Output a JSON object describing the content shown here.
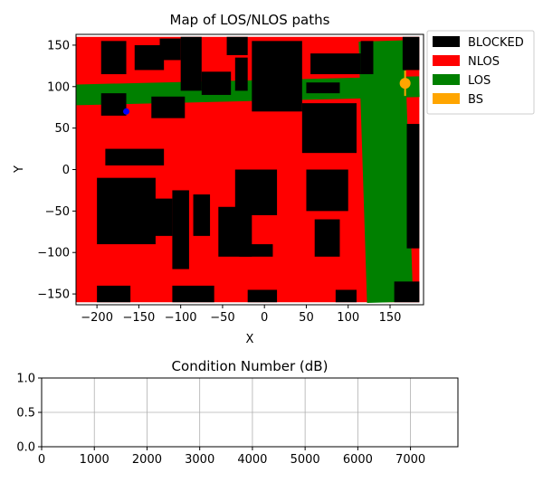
{
  "chart_data": [
    {
      "type": "heatmap",
      "title": "Map of LOS/NLOS paths",
      "xlabel": "X",
      "ylabel": "Y",
      "xlim": [
        -225,
        190
      ],
      "ylim": [
        -163,
        163
      ],
      "xticks": [
        -200,
        -150,
        -100,
        -50,
        0,
        50,
        100,
        150
      ],
      "yticks": [
        -150,
        -100,
        -50,
        0,
        50,
        100,
        150
      ],
      "grid": false,
      "legend_position": "outside-top-right",
      "legend": [
        {
          "label": "BLOCKED",
          "color": "#000000"
        },
        {
          "label": "NLOS",
          "color": "#ff0000"
        },
        {
          "label": "LOS",
          "color": "#008000"
        },
        {
          "label": "BS",
          "color": "#ffa500"
        }
      ],
      "area_extent": {
        "x": [
          -225,
          185
        ],
        "y": [
          -160,
          160
        ]
      },
      "blocked_buildings": [
        [
          -195,
          -165,
          115,
          155
        ],
        [
          -155,
          -120,
          120,
          150
        ],
        [
          -125,
          -100,
          132,
          158
        ],
        [
          -100,
          -75,
          95,
          160
        ],
        [
          -195,
          -165,
          65,
          92
        ],
        [
          -135,
          -95,
          62,
          88
        ],
        [
          -75,
          -40,
          90,
          118
        ],
        [
          -45,
          -20,
          138,
          160
        ],
        [
          -35,
          -20,
          95,
          135
        ],
        [
          -190,
          -120,
          5,
          25
        ],
        [
          -200,
          -130,
          -90,
          -10
        ],
        [
          -150,
          -110,
          -80,
          -35
        ],
        [
          -110,
          -90,
          -120,
          -25
        ],
        [
          -85,
          -65,
          -80,
          -30
        ],
        [
          -30,
          10,
          -105,
          -90
        ],
        [
          -55,
          -15,
          -105,
          -45
        ],
        [
          -35,
          15,
          -55,
          0
        ],
        [
          45,
          110,
          20,
          80
        ],
        [
          55,
          115,
          115,
          140
        ],
        [
          50,
          90,
          92,
          105
        ],
        [
          50,
          100,
          -50,
          0
        ],
        [
          60,
          90,
          -105,
          -60
        ],
        [
          -200,
          -160,
          -160,
          -140
        ],
        [
          -110,
          -60,
          -160,
          -140
        ],
        [
          -20,
          15,
          -160,
          -145
        ],
        [
          85,
          110,
          -160,
          -145
        ],
        [
          155,
          185,
          -160,
          -135
        ],
        [
          -15,
          45,
          70,
          155
        ],
        [
          115,
          130,
          115,
          155
        ],
        [
          165,
          185,
          120,
          160
        ],
        [
          170,
          185,
          -95,
          55
        ]
      ],
      "los_corridors": [
        {
          "from": [
            -225,
            90
          ],
          "to": [
            185,
            100
          ],
          "width": 25
        },
        {
          "from": [
            140,
            155
          ],
          "to": [
            150,
            -160
          ],
          "width": 55
        }
      ],
      "user_point": {
        "x": -165,
        "y": 70,
        "color": "#0000ff"
      },
      "base_station": {
        "x": 168,
        "y": 104,
        "color": "#ffa500"
      }
    },
    {
      "type": "line",
      "title": "Condition Number (dB)",
      "xlabel": "",
      "ylabel": "",
      "xlim": [
        0,
        7900
      ],
      "ylim": [
        0,
        1
      ],
      "xticks": [
        0,
        1000,
        2000,
        3000,
        4000,
        5000,
        6000,
        7000
      ],
      "yticks": [
        0.0,
        0.5,
        1.0
      ],
      "grid": true,
      "series": []
    }
  ]
}
